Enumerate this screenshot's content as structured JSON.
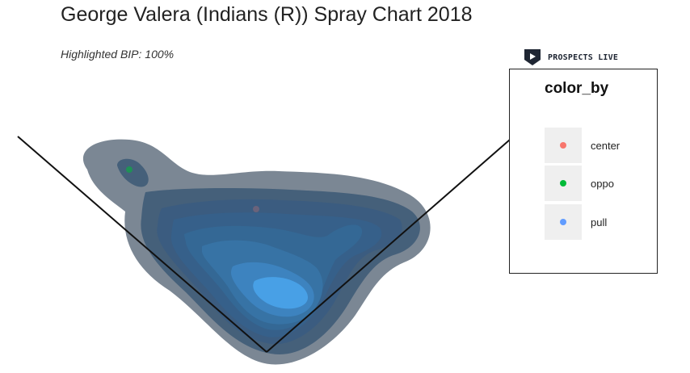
{
  "chart_data": {
    "type": "density-contour",
    "title": "George Valera (Indians (R)) Spray Chart 2018",
    "subtitle": "Highlighted BIP: 100%",
    "legend": {
      "title": "color_by",
      "position": "right",
      "items": [
        {
          "label": "center",
          "color": "#f8766d"
        },
        {
          "label": "oppo",
          "color": "#00ba38"
        },
        {
          "label": "pull",
          "color": "#619cff"
        }
      ]
    },
    "density_levels": [
      1,
      2,
      3,
      4,
      5,
      6,
      7,
      8
    ],
    "level_colors": [
      "#7b8794",
      "#45607a",
      "#3b5c80",
      "#36608a",
      "#346895",
      "#3773a5",
      "#3d83bf",
      "#48a0e6"
    ],
    "points": [
      {
        "category": "oppo",
        "color": "#00ba38"
      },
      {
        "category": "center",
        "color": "#f8766d"
      }
    ]
  },
  "brand": {
    "name": "PROSPECTS LIVE",
    "logo_color": "#1f2633"
  }
}
